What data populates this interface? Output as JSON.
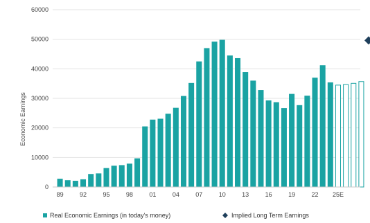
{
  "chart_data": {
    "type": "bar",
    "ylabel": "Economic Earnings",
    "xlabel": "",
    "ylim": [
      0,
      60000
    ],
    "y_ticks": [
      "0",
      "10000",
      "20000",
      "30000",
      "40000",
      "50000",
      "60000"
    ],
    "x_tick_labels": [
      "89",
      "92",
      "95",
      "98",
      "01",
      "04",
      "07",
      "10",
      "13",
      "16",
      "19",
      "22",
      "25E"
    ],
    "grid": "horizontal",
    "legend_placement": "bottom",
    "colors": {
      "actual": "#1aa3a3",
      "estimate_outline": "#1aa3a3",
      "marker": "#1f3f5b",
      "grid": "#e3e3e3"
    },
    "series": [
      {
        "name": "Real Economic Earnings (in today's money)",
        "style": "solid",
        "x": [
          "1989",
          "1990",
          "1991",
          "1992",
          "1993",
          "1994",
          "1995",
          "1996",
          "1997",
          "1998",
          "1999",
          "2000",
          "2001",
          "2002",
          "2003",
          "2004",
          "2005",
          "2006",
          "2007",
          "2008",
          "2009",
          "2010",
          "2011",
          "2012",
          "2013",
          "2014",
          "2015",
          "2016",
          "2017",
          "2018",
          "2019",
          "2020",
          "2021",
          "2022",
          "2023",
          "2024"
        ],
        "values": [
          2800,
          2300,
          2100,
          2600,
          4400,
          4600,
          6400,
          7200,
          7400,
          7900,
          9700,
          20500,
          22800,
          23100,
          24800,
          26800,
          30800,
          35200,
          42500,
          47000,
          49200,
          49800,
          44500,
          43600,
          38900,
          36000,
          32800,
          29300,
          28700,
          26700,
          31500,
          27700,
          30900,
          37000,
          41200,
          35400
        ]
      },
      {
        "name": "Real Economic Earnings (estimate)",
        "style": "outline",
        "x": [
          "2025E",
          "2026E",
          "2027E",
          "2028E"
        ],
        "values": [
          34600,
          34800,
          35200,
          35800
        ]
      }
    ],
    "markers": [
      {
        "name": "Implied Long Term Earnings",
        "value": 49600
      }
    ],
    "legend": [
      {
        "label": "Real Economic Earnings (in today's money)",
        "symbol": "square"
      },
      {
        "label": "Implied Long Term Earnings",
        "symbol": "diamond"
      }
    ]
  }
}
